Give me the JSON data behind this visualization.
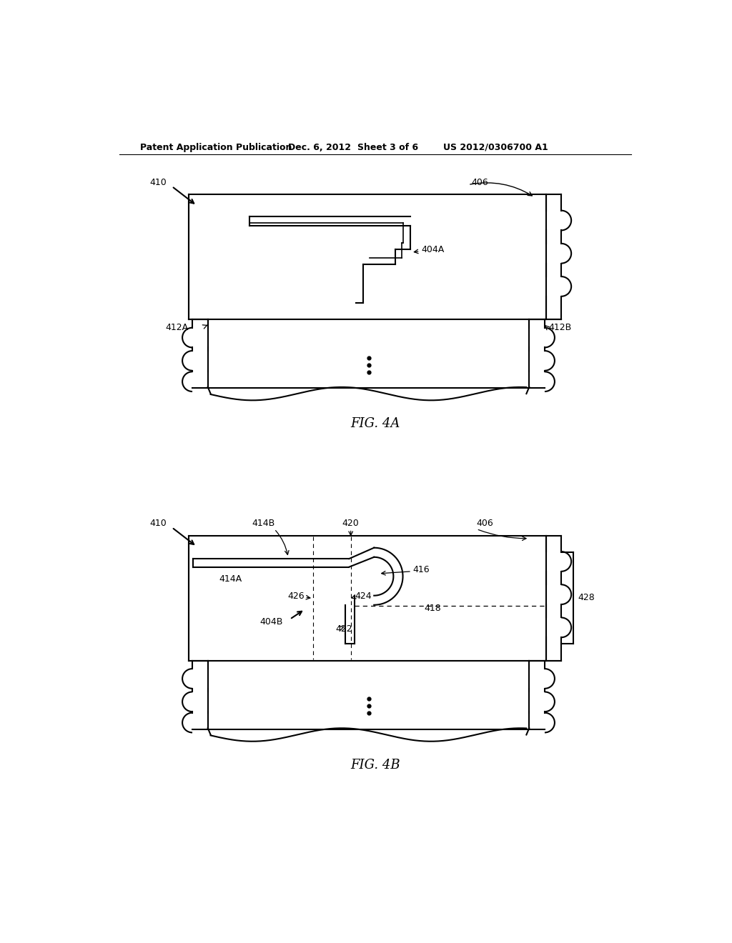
{
  "bg_color": "#ffffff",
  "line_color": "#000000",
  "header_text": "Patent Application Publication",
  "header_date": "Dec. 6, 2012",
  "header_sheet": "Sheet 3 of 6",
  "header_patent": "US 2012/0306700 A1",
  "fig4a_label": "FIG. 4A",
  "fig4b_label": "FIG. 4B"
}
